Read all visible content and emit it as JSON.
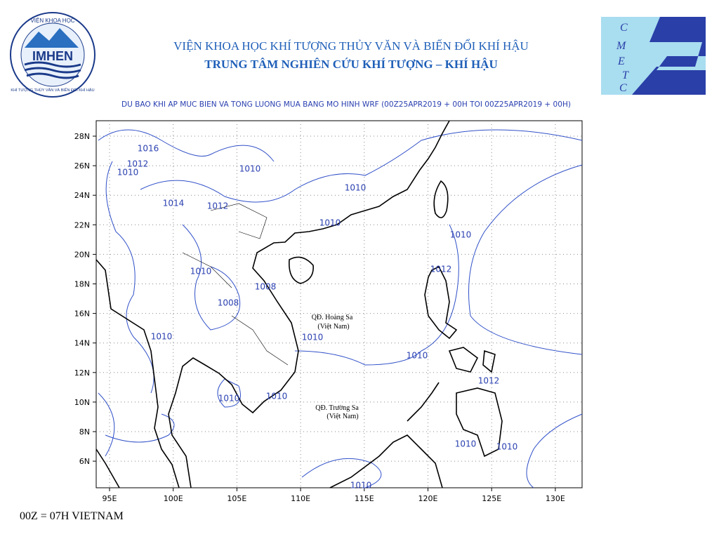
{
  "header": {
    "institute": "VIỆN KHOA HỌC KHÍ TƯỢNG THỦY VĂN VÀ BIẾN ĐỔI KHÍ HẬU",
    "center": "TRUNG TÂM NGHIÊN CỨU KHÍ TƯỢNG – KHÍ HẬU"
  },
  "logo_left": {
    "text": "IMHEN",
    "ring_top": "VIỆN KHOA HỌC",
    "ring_bottom": "KHÍ TƯỢNG THỦY VĂN VÀ BIẾN ĐỔI KHÍ HẬU"
  },
  "logo_right": {
    "letters": [
      "C",
      "M",
      "E",
      "T",
      "C"
    ]
  },
  "map": {
    "title": "DU BAO KHI AP MUC BIEN VA TONG LUONG MUA BANG MO HINH WRF (00Z25APR2019 + 00H TOI 00Z25APR2019 + 00H)",
    "lat_labels": [
      "28N",
      "26N",
      "24N",
      "22N",
      "20N",
      "18N",
      "16N",
      "14N",
      "12N",
      "10N",
      "8N",
      "6N"
    ],
    "lon_labels": [
      "95E",
      "100E",
      "105E",
      "110E",
      "115E",
      "120E",
      "125E",
      "130E"
    ],
    "isobar_labels": [
      "1016",
      "1012",
      "1010",
      "1010",
      "1010",
      "1014",
      "1012",
      "1010",
      "1010",
      "1012",
      "1010",
      "1008",
      "1008",
      "1010",
      "1010",
      "1010",
      "1012",
      "1010",
      "1010",
      "1010",
      "1010",
      "1010"
    ],
    "places": [
      "QĐ. Hoàng Sa",
      "(Việt Nam)",
      "QĐ. Trường Sa",
      "(Việt Nam)"
    ]
  },
  "footer": "00Z = 07H VIETNAM"
}
